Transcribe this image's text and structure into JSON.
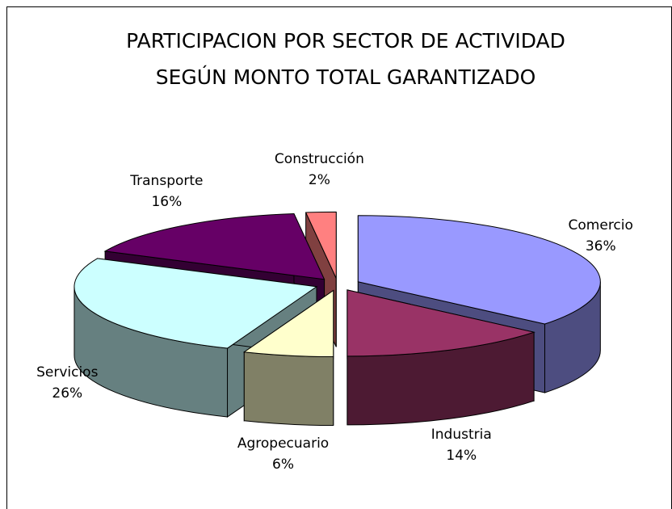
{
  "chart_data": {
    "type": "pie3d",
    "title": [
      "PARTICIPACION POR SECTOR DE ACTIVIDAD",
      "SEGÚN MONTO TOTAL GARANTIZADO"
    ],
    "categories": [
      "Comercio",
      "Industria",
      "Agropecuario",
      "Servicios",
      "Transporte",
      "Construcción"
    ],
    "values": [
      36,
      14,
      6,
      26,
      16,
      2
    ],
    "value_labels": [
      "36%",
      "14%",
      "6%",
      "26%",
      "16%",
      "2%"
    ],
    "colors": [
      "#9999ff",
      "#993366",
      "#ffffcc",
      "#ccffff",
      "#660066",
      "#ff8080"
    ]
  }
}
